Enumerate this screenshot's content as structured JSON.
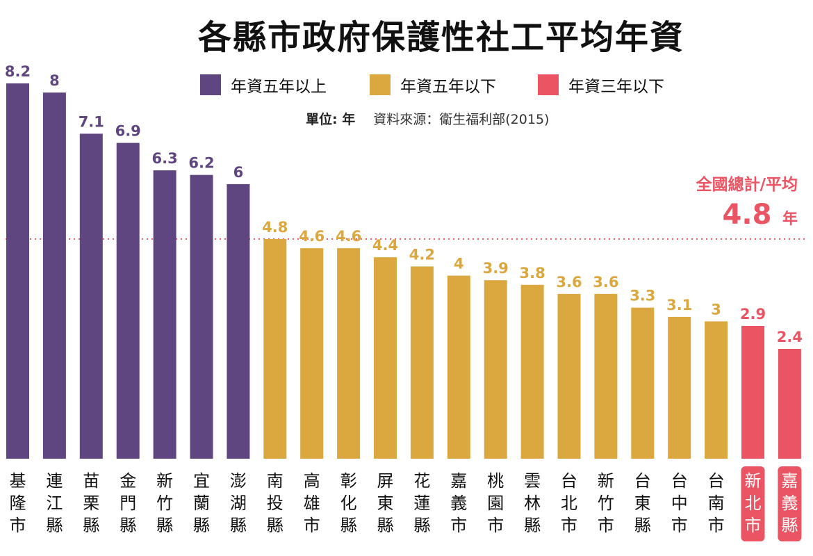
{
  "chart_data": {
    "type": "bar",
    "title": "各縣市政府保護性社工平均年資",
    "unit_note": "單位: 年",
    "source": "資料來源：衛生福利部(2015)",
    "categories": [
      "基隆市",
      "連江縣",
      "苗栗縣",
      "金門縣",
      "新竹縣",
      "宜蘭縣",
      "澎湖縣",
      "南投縣",
      "高雄市",
      "彰化縣",
      "屏東縣",
      "花蓮縣",
      "嘉義市",
      "桃園市",
      "雲林縣",
      "台北市",
      "新竹市",
      "台東縣",
      "台中市",
      "台南市",
      "新北市",
      "嘉義縣"
    ],
    "values": [
      8.2,
      8,
      7.1,
      6.9,
      6.3,
      6.2,
      6,
      4.8,
      4.6,
      4.6,
      4.4,
      4.2,
      4,
      3.9,
      3.8,
      3.6,
      3.6,
      3.3,
      3.1,
      3,
      2.9,
      2.4
    ],
    "value_labels": [
      "8.2",
      "8",
      "7.1",
      "6.9",
      "6.3",
      "6.2",
      "6",
      "4.8",
      "4.6",
      "4.6",
      "4.4",
      "4.2",
      "4",
      "3.9",
      "3.8",
      "3.6",
      "3.6",
      "3.3",
      "3.1",
      "3",
      "2.9",
      "2.4"
    ],
    "groups": [
      "above5",
      "above5",
      "above5",
      "above5",
      "above5",
      "above5",
      "above5",
      "below5",
      "below5",
      "below5",
      "below5",
      "below5",
      "below5",
      "below5",
      "below5",
      "below5",
      "below5",
      "below5",
      "below5",
      "below5",
      "below3",
      "below3"
    ],
    "legend": [
      {
        "key": "above5",
        "label": "年資五年以上",
        "color": "#5f4680"
      },
      {
        "key": "below5",
        "label": "年資五年以下",
        "color": "#dba73f"
      },
      {
        "key": "below3",
        "label": "年資三年以下",
        "color": "#ea5463"
      }
    ],
    "reference_line": {
      "value": 4.8,
      "label": "全國總計/平均",
      "value_label": "4.8",
      "unit": "年",
      "color": "#ea5463",
      "style": "dotted"
    },
    "ylim": [
      0,
      8.2
    ],
    "xlabel": "",
    "ylabel": "",
    "grid": false,
    "legend_position": "top"
  }
}
